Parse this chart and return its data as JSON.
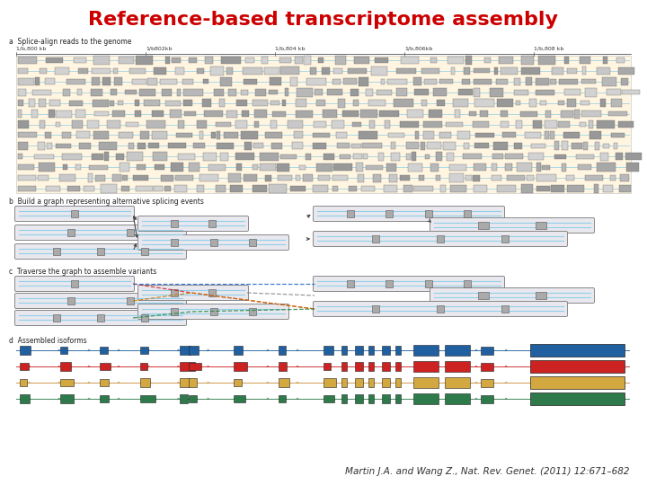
{
  "title": "Reference-based transcriptome assembly",
  "title_color": "#CC0000",
  "title_fontsize": 16,
  "citation": "Martin J.A. and Wang Z., Nat. Rev. Genet. (2011) 12:671–682",
  "citation_fontsize": 7.5,
  "background_color": "#ffffff",
  "panel_a_label": "a  Splice-align reads to the genome",
  "panel_b_label": "b  Build a graph representing alternative splicing events",
  "panel_c_label": "c  Traverse the graph to assemble variants",
  "panel_d_label": "d  Assembled isoforms",
  "panel_a_bg": "#FFF5E0",
  "genome_line_color": "#87CEEB",
  "block_color_dark": "#A0A0A0",
  "block_color_light": "#C8C8C8",
  "isoform_colors": [
    "#2060A0",
    "#CC2222",
    "#D4A840",
    "#2E7A4A"
  ],
  "isoform_line_colors": [
    "#2060A0",
    "#CC2222",
    "#C8903C",
    "#2E7A4A"
  ],
  "axis_tick_labels": [
    "1/b,800 kb",
    "1/b802kb",
    "1/b,804 kb",
    "1/b,806kb",
    "1/b,808 kb"
  ]
}
